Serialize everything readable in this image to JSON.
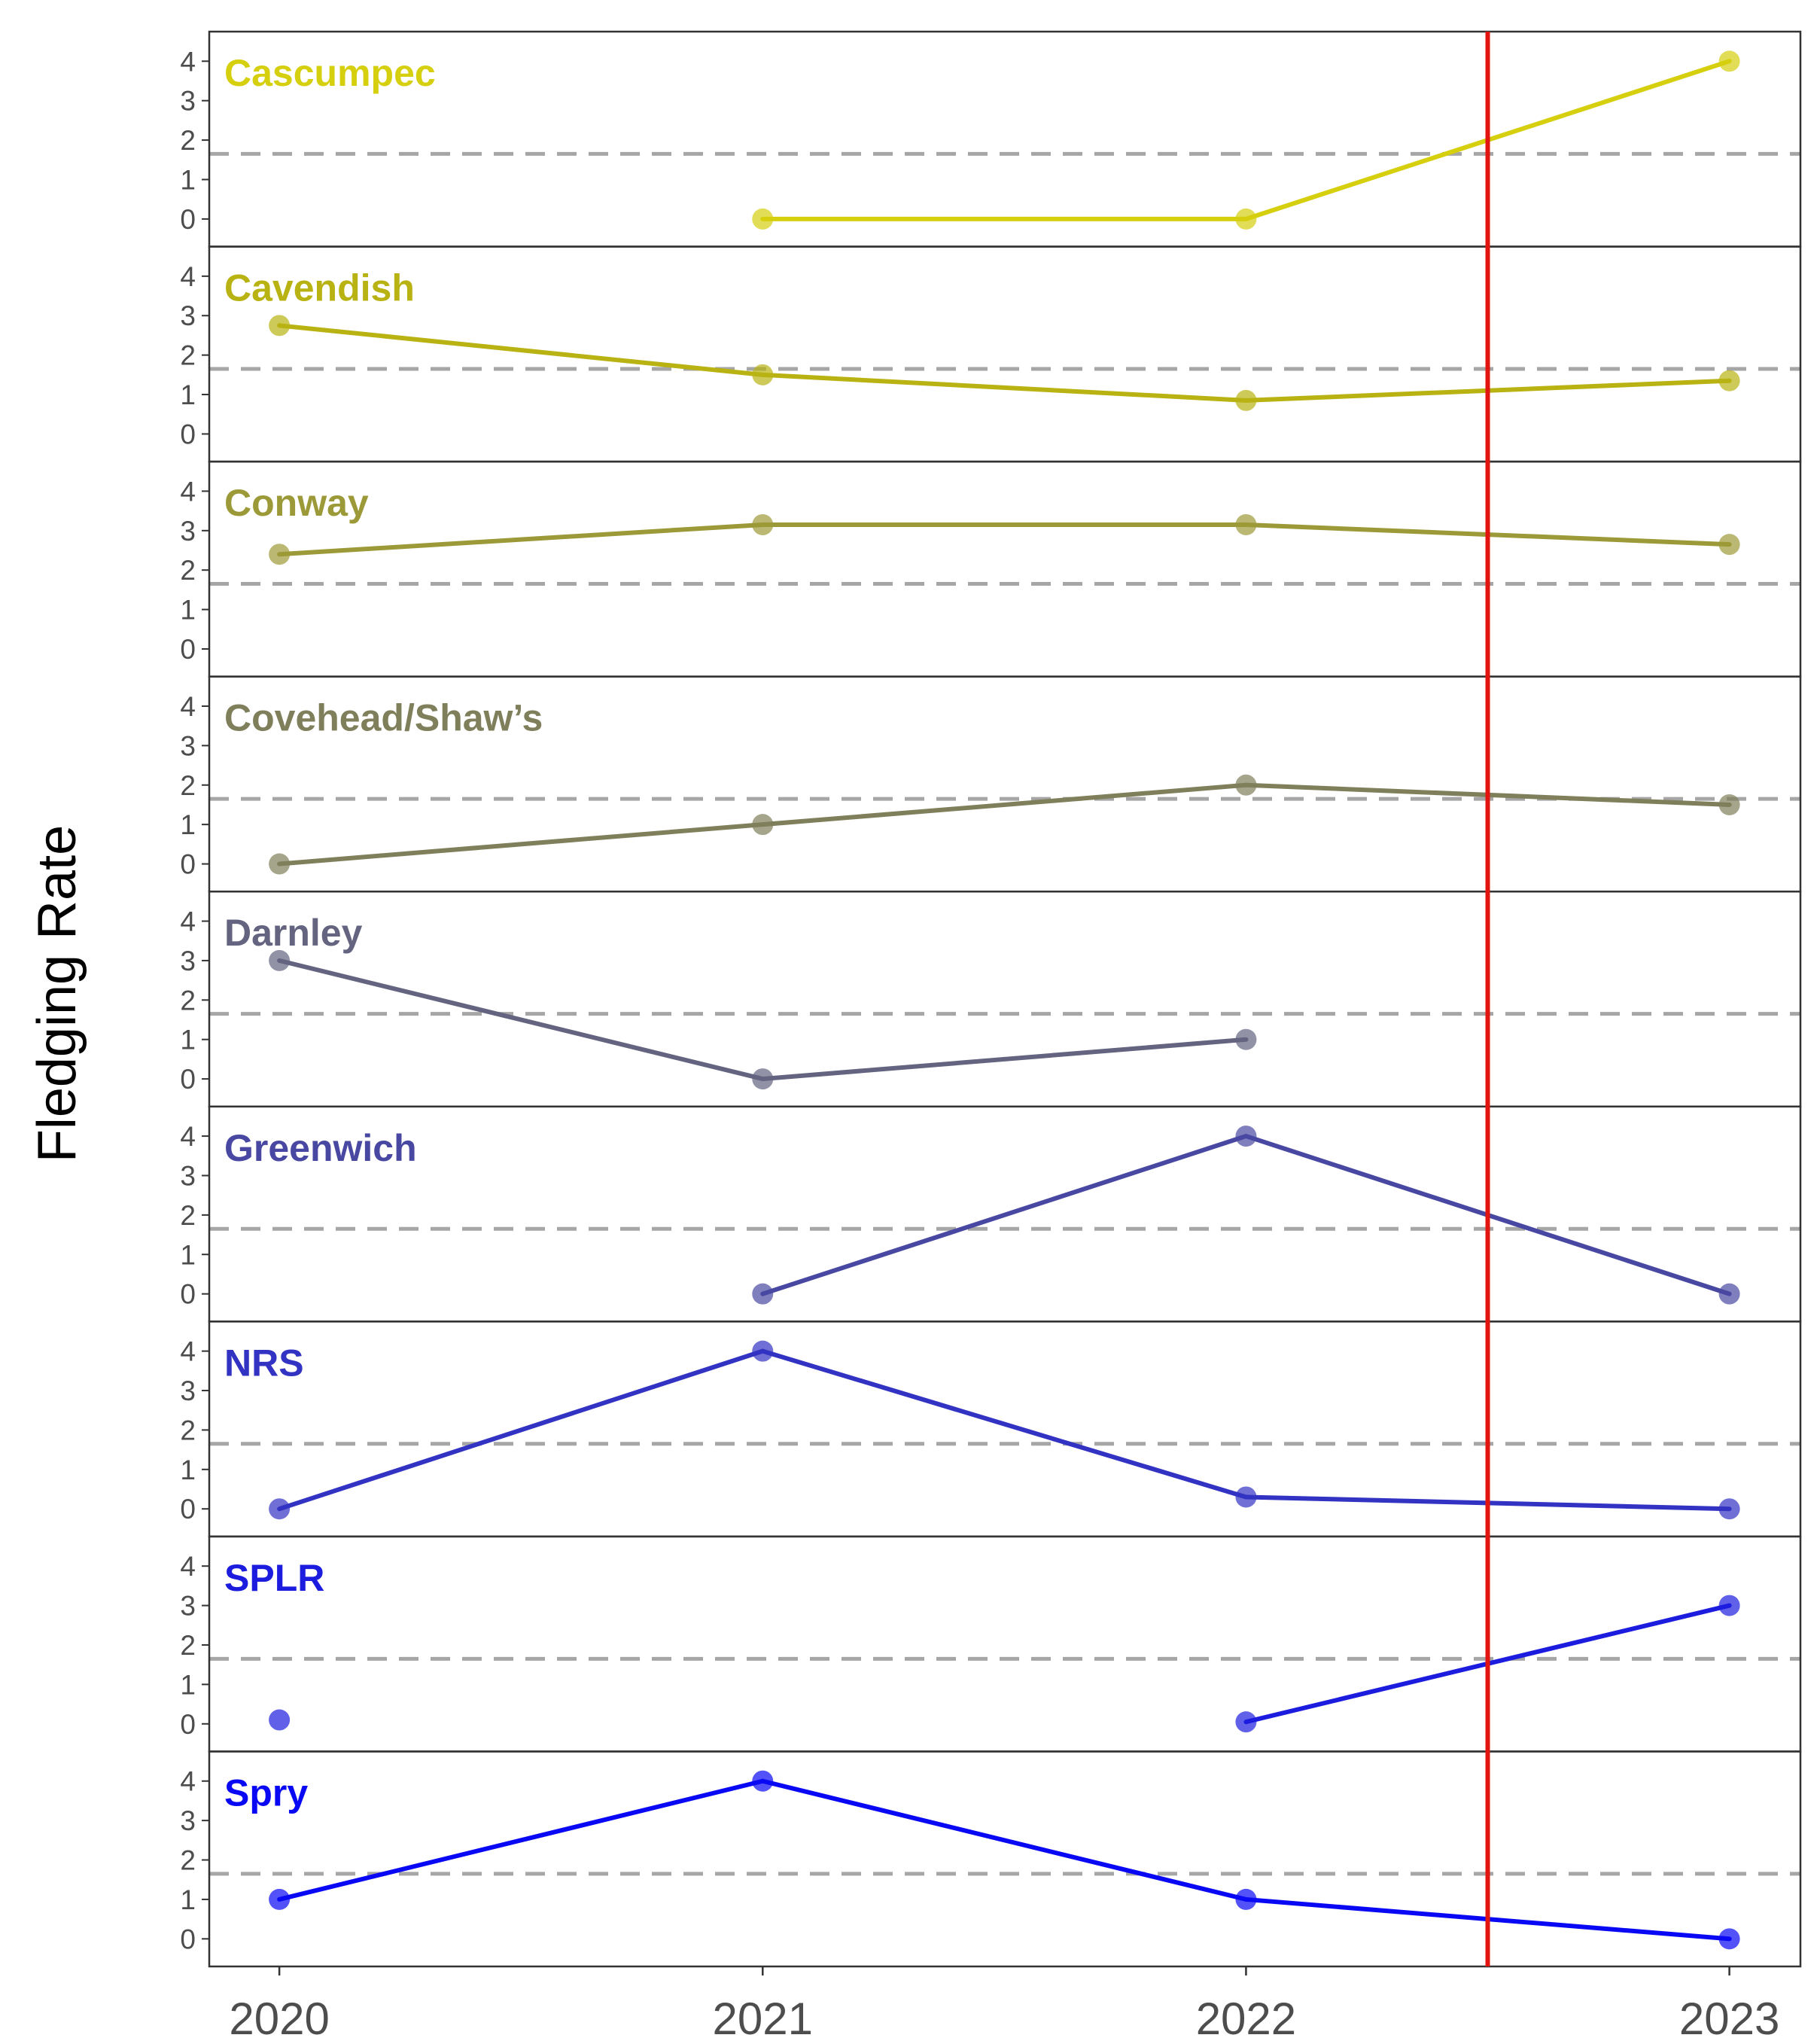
{
  "chart_data": {
    "type": "line",
    "ylabel": "Fledging Rate",
    "xlabel": "",
    "x": [
      2020,
      2021,
      2022,
      2023
    ],
    "x_tick_labels": [
      "2020",
      "2021",
      "2022",
      "2023"
    ],
    "ylim": [
      -0.7,
      4.75
    ],
    "y_ticks": [
      0,
      1,
      2,
      3,
      4
    ],
    "reference_line": {
      "value": 1.65,
      "style": "dashed",
      "color": "#a6a6a6"
    },
    "vertical_marker": {
      "x": 2022.5,
      "color": "#e3140f"
    },
    "grid": false,
    "facets": [
      {
        "name": "Cascumpec",
        "color": "#d5cf0e",
        "values": [
          null,
          0,
          0,
          4
        ],
        "gap_after_index": null
      },
      {
        "name": "Cavendish",
        "color": "#b8b312",
        "values": [
          2.75,
          1.5,
          0.85,
          1.35
        ],
        "gap_after_index": null
      },
      {
        "name": "Conway",
        "color": "#9c9a38",
        "values": [
          2.4,
          3.15,
          3.15,
          2.65
        ],
        "gap_after_index": null
      },
      {
        "name": "Covehead/Shaw’s",
        "color": "#7f7f5b",
        "values": [
          0,
          1,
          2,
          1.5
        ],
        "gap_after_index": null
      },
      {
        "name": "Darnley",
        "color": "#646480",
        "values": [
          3,
          0,
          1,
          null
        ],
        "gap_after_index": null
      },
      {
        "name": "Greenwich",
        "color": "#4848a3",
        "values": [
          null,
          0,
          4,
          0
        ],
        "gap_after_index": null
      },
      {
        "name": "NRS",
        "color": "#3232c3",
        "values": [
          0,
          4,
          0.3,
          0
        ],
        "gap_after_index": null
      },
      {
        "name": "SPLR",
        "color": "#1c1cdf",
        "values": [
          0.1,
          null,
          0.05,
          3
        ],
        "gap_after_index": 0
      },
      {
        "name": "Spry",
        "color": "#0808f5",
        "values": [
          1,
          4,
          1,
          0
        ],
        "gap_after_index": null
      }
    ]
  }
}
